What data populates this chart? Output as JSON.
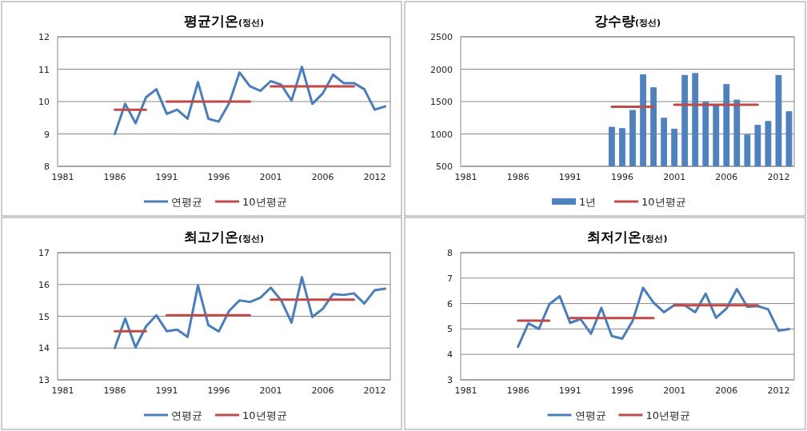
{
  "chart_data": [
    {
      "type": "line",
      "title": "평균기온(정선)",
      "categories": [
        "1981",
        null,
        null,
        null,
        null,
        "1986",
        null,
        null,
        null,
        null,
        "1991",
        null,
        null,
        null,
        null,
        "1996",
        null,
        null,
        null,
        null,
        "2001",
        null,
        null,
        null,
        null,
        "2006",
        null,
        null,
        null,
        null,
        "2012",
        null
      ],
      "series": [
        {
          "name": "연평균",
          "color": "#4a7ebb",
          "values": [
            null,
            null,
            null,
            null,
            null,
            9.0,
            9.93,
            9.33,
            10.13,
            10.38,
            9.62,
            9.75,
            9.47,
            10.6,
            9.47,
            9.38,
            9.95,
            10.9,
            10.47,
            10.33,
            10.63,
            10.52,
            10.03,
            11.07,
            9.93,
            10.25,
            10.83,
            10.57,
            10.57,
            10.38,
            9.75,
            9.85
          ]
        },
        {
          "name": "10년평균",
          "color": "#be4b48",
          "values": [
            null,
            null,
            null,
            null,
            null,
            9.75,
            9.75,
            9.75,
            9.75,
            null,
            10.0,
            10.0,
            10.0,
            10.0,
            10.0,
            10.0,
            10.0,
            10.0,
            10.0,
            null,
            10.47,
            10.47,
            10.47,
            10.47,
            10.47,
            10.47,
            10.47,
            10.47,
            10.47,
            null,
            null,
            null
          ]
        }
      ],
      "ylim": [
        8,
        12
      ],
      "yticks": [
        8,
        9,
        10,
        11,
        12
      ],
      "grid": "y",
      "legend": "bottom"
    },
    {
      "type": "bar",
      "title": "강수량(정선)",
      "categories": [
        "1981",
        null,
        null,
        null,
        null,
        "1986",
        null,
        null,
        null,
        null,
        "1991",
        null,
        null,
        null,
        null,
        "1996",
        null,
        null,
        null,
        null,
        "2001",
        null,
        null,
        null,
        null,
        "2006",
        null,
        null,
        null,
        null,
        "2012",
        null
      ],
      "series": [
        {
          "name": "1년",
          "color": "#4f81bd",
          "values": [
            null,
            null,
            null,
            null,
            null,
            null,
            null,
            null,
            null,
            null,
            null,
            null,
            null,
            null,
            1110,
            1090,
            1370,
            1920,
            1720,
            1250,
            1080,
            1910,
            1940,
            1500,
            1440,
            1770,
            1530,
            990,
            1140,
            1200,
            1910,
            1350
          ]
        },
        {
          "name": "10년평균",
          "type": "line",
          "color": "#be4b48",
          "values": [
            null,
            null,
            null,
            null,
            null,
            null,
            null,
            null,
            null,
            null,
            null,
            null,
            null,
            null,
            1420,
            1420,
            1420,
            1420,
            1420,
            null,
            1450,
            1450,
            1450,
            1450,
            1450,
            1450,
            1450,
            1450,
            1450,
            null,
            null,
            null
          ]
        }
      ],
      "ylim": [
        500,
        2500
      ],
      "yticks": [
        500,
        1000,
        1500,
        2000,
        2500
      ],
      "grid": "y",
      "legend": "bottom"
    },
    {
      "type": "line",
      "title": "최고기온(정선)",
      "categories": [
        "1981",
        null,
        null,
        null,
        null,
        "1986",
        null,
        null,
        null,
        null,
        "1991",
        null,
        null,
        null,
        null,
        "1996",
        null,
        null,
        null,
        null,
        "2001",
        null,
        null,
        null,
        null,
        "2006",
        null,
        null,
        null,
        null,
        "2012",
        null
      ],
      "series": [
        {
          "name": "연평균",
          "color": "#4a7ebb",
          "values": [
            null,
            null,
            null,
            null,
            null,
            14.0,
            14.93,
            14.02,
            14.68,
            15.03,
            14.53,
            14.58,
            14.35,
            15.97,
            14.72,
            14.52,
            15.17,
            15.5,
            15.45,
            15.58,
            15.9,
            15.5,
            14.8,
            16.23,
            14.98,
            15.23,
            15.7,
            15.67,
            15.72,
            15.4,
            15.82,
            15.87
          ]
        },
        {
          "name": "10년평균",
          "color": "#be4b48",
          "values": [
            null,
            null,
            null,
            null,
            null,
            14.53,
            14.53,
            14.53,
            14.53,
            null,
            15.03,
            15.03,
            15.03,
            15.03,
            15.03,
            15.03,
            15.03,
            15.03,
            15.03,
            null,
            15.52,
            15.52,
            15.52,
            15.52,
            15.52,
            15.52,
            15.52,
            15.52,
            15.52,
            null,
            null,
            null
          ]
        }
      ],
      "ylim": [
        13,
        17
      ],
      "yticks": [
        13,
        14,
        15,
        16,
        17
      ],
      "grid": "y",
      "legend": "bottom"
    },
    {
      "type": "line",
      "title": "최저기온(정선)",
      "categories": [
        "1981",
        null,
        null,
        null,
        null,
        "1986",
        null,
        null,
        null,
        null,
        "1991",
        null,
        null,
        null,
        null,
        "1996",
        null,
        null,
        null,
        null,
        "2001",
        null,
        null,
        null,
        null,
        "2006",
        null,
        null,
        null,
        null,
        "2012",
        null
      ],
      "series": [
        {
          "name": "연평균",
          "color": "#4a7ebb",
          "values": [
            null,
            null,
            null,
            null,
            null,
            4.3,
            5.22,
            5.0,
            5.97,
            6.29,
            5.24,
            5.39,
            4.81,
            5.83,
            4.72,
            4.62,
            5.32,
            6.62,
            6.04,
            5.66,
            5.94,
            5.93,
            5.66,
            6.39,
            5.44,
            5.8,
            6.57,
            5.87,
            5.9,
            5.77,
            4.93,
            5.0
          ]
        },
        {
          "name": "10년평균",
          "color": "#be4b48",
          "values": [
            null,
            null,
            null,
            null,
            null,
            5.33,
            5.33,
            5.33,
            5.33,
            null,
            5.43,
            5.43,
            5.43,
            5.43,
            5.43,
            5.43,
            5.43,
            5.43,
            5.43,
            null,
            5.93,
            5.93,
            5.93,
            5.93,
            5.93,
            5.93,
            5.93,
            5.93,
            5.93,
            null,
            null,
            null
          ]
        }
      ],
      "ylim": [
        3,
        8
      ],
      "yticks": [
        3,
        4,
        5,
        6,
        7,
        8
      ],
      "grid": "y",
      "legend": "bottom"
    }
  ]
}
